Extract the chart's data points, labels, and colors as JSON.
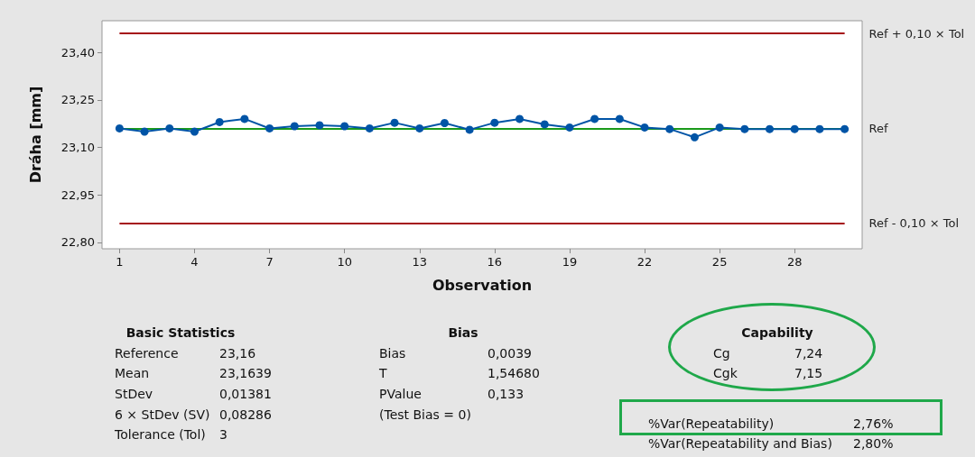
{
  "chart_data": {
    "type": "line",
    "xlabel": "Observation",
    "ylabel": "Dráha [mm]",
    "x": [
      1,
      2,
      3,
      4,
      5,
      6,
      7,
      8,
      9,
      10,
      11,
      12,
      13,
      14,
      15,
      16,
      17,
      18,
      19,
      20,
      21,
      22,
      23,
      24,
      25,
      26,
      27,
      28,
      29,
      30
    ],
    "series": [
      {
        "color": "#0054a6",
        "values": [
          23.16,
          23.15,
          23.16,
          23.15,
          23.18,
          23.19,
          23.16,
          23.167,
          23.17,
          23.167,
          23.16,
          23.178,
          23.16,
          23.177,
          23.156,
          23.178,
          23.19,
          23.173,
          23.163,
          23.19,
          23.19,
          23.163,
          23.158,
          23.132,
          23.163,
          23.158,
          23.158,
          23.158,
          23.158,
          23.158
        ]
      }
    ],
    "marker": "circle",
    "line_style": "solid",
    "grid": false,
    "xlim": [
      0.3,
      30.7
    ],
    "xticks": [
      1,
      4,
      7,
      10,
      13,
      16,
      19,
      22,
      25,
      28
    ],
    "ylim": [
      22.78,
      23.5
    ],
    "yticks": [
      {
        "value": 22.8,
        "label": "22,80"
      },
      {
        "value": 22.95,
        "label": "22,95"
      },
      {
        "value": 23.1,
        "label": "23,10"
      },
      {
        "value": 23.25,
        "label": "23,25"
      },
      {
        "value": 23.4,
        "label": "23,40"
      }
    ],
    "ref_lines": [
      {
        "axis": "y",
        "value": 23.46,
        "label": "Ref + 0,10 × Tol",
        "color": "#a50f15"
      },
      {
        "axis": "y",
        "value": 23.16,
        "label": "Ref",
        "color": "#1a9a1a"
      },
      {
        "axis": "y",
        "value": 22.86,
        "label": "Ref - 0,10 × Tol",
        "color": "#a50f15"
      }
    ],
    "annotations": [
      "Basic Statistics",
      "Reference",
      "23,16",
      "Mean",
      "23,1639",
      "StDev",
      "0,01381",
      "6 × StDev (SV)",
      "0,08286",
      "Tolerance (Tol)",
      "3",
      "Bias",
      "Bias",
      "0,0039",
      "T",
      "1,54680",
      "PValue",
      "0,133",
      "(Test Bias = 0)",
      "Capability",
      "Cg",
      "7,24",
      "Cgk",
      "7,15",
      "%Var(Repeatability)",
      "2,76%",
      "%Var(Repeatability and Bias)",
      "2,80%"
    ]
  }
}
